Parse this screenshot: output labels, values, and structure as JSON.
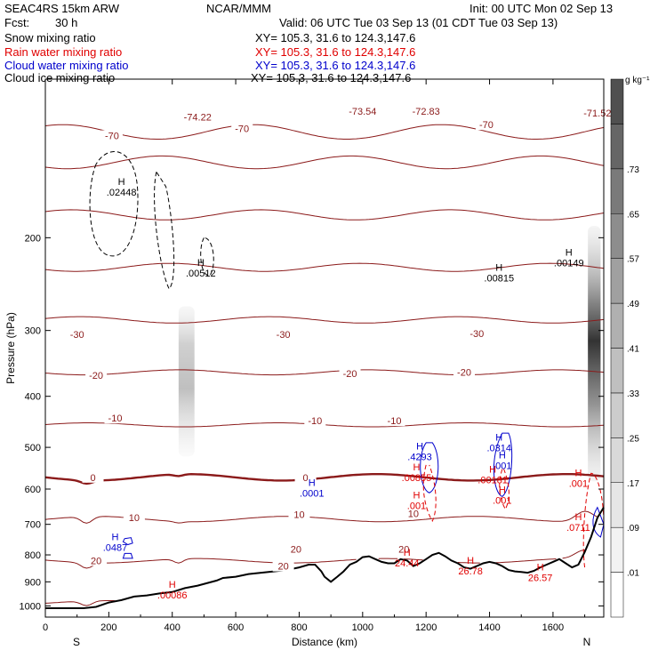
{
  "header": {
    "model": "SEAC4RS 15km ARW",
    "org": "NCAR/MMM",
    "init": "Init: 00 UTC Mon 02 Sep 13",
    "fcst_label": "Fcst:",
    "fcst_value": "30 h",
    "valid": "Valid: 06 UTC Tue 03 Sep 13 (01 CDT Tue 03 Sep 13)"
  },
  "fields": [
    {
      "name": "Snow mixing ratio",
      "xy": "XY= 105.3, 31.6 to 124.3,147.6",
      "color": "#000000"
    },
    {
      "name": "Rain water mixing ratio",
      "xy": "XY= 105.3, 31.6 to 124.3,147.6",
      "color": "#e00000"
    },
    {
      "name": "Cloud water mixing ratio",
      "xy": "XY= 105.3, 31.6 to 124.3,147.6",
      "color": "#0000cc"
    },
    {
      "name": "Cloud ice mixing ratio",
      "xy": "XY= 105.3, 31.6 to 124.3,147.6",
      "color": "#000000"
    }
  ],
  "chart_data": {
    "type": "cross-section",
    "xlabel": "Distance (km)",
    "ylabel": "Pressure (hPa)",
    "xlim": [
      0,
      1760
    ],
    "ylim": [
      1050,
      100
    ],
    "y_scale": "log",
    "x_ticks": [
      0,
      200,
      400,
      600,
      800,
      1000,
      1200,
      1400,
      1600
    ],
    "y_ticks": [
      200,
      300,
      400,
      500,
      600,
      700,
      800,
      900,
      1000
    ],
    "end_labels": {
      "left": "S",
      "right": "N"
    },
    "colorbar": {
      "units": "g kg⁻¹",
      "ticks": [
        ".01",
        ".09",
        ".17",
        ".25",
        ".33",
        ".41",
        ".49",
        ".57",
        ".65",
        ".73"
      ],
      "shades": [
        "#ffffff",
        "#f2f2f2",
        "#e6e6e6",
        "#d9d9d9",
        "#cccccc",
        "#bfbfbf",
        "#b0b0b0",
        "#a0a0a0",
        "#8d8d8d",
        "#7a7a7a",
        "#666666",
        "#505050"
      ]
    },
    "terrain": [
      [
        0,
        1010
      ],
      [
        120,
        1010
      ],
      [
        160,
        1004
      ],
      [
        200,
        985
      ],
      [
        240,
        975
      ],
      [
        280,
        960
      ],
      [
        320,
        955
      ],
      [
        360,
        947
      ],
      [
        400,
        941
      ],
      [
        440,
        925
      ],
      [
        480,
        915
      ],
      [
        540,
        895
      ],
      [
        560,
        885
      ],
      [
        600,
        880
      ],
      [
        640,
        870
      ],
      [
        680,
        865
      ],
      [
        720,
        860
      ],
      [
        760,
        855
      ],
      [
        800,
        845
      ],
      [
        830,
        835
      ],
      [
        850,
        835
      ],
      [
        870,
        860
      ],
      [
        880,
        880
      ],
      [
        900,
        900
      ],
      [
        920,
        880
      ],
      [
        940,
        860
      ],
      [
        960,
        835
      ],
      [
        980,
        825
      ],
      [
        1000,
        808
      ],
      [
        1020,
        805
      ],
      [
        1040,
        815
      ],
      [
        1060,
        825
      ],
      [
        1080,
        830
      ],
      [
        1100,
        830
      ],
      [
        1120,
        815
      ],
      [
        1140,
        820
      ],
      [
        1160,
        840
      ],
      [
        1180,
        830
      ],
      [
        1200,
        815
      ],
      [
        1220,
        800
      ],
      [
        1240,
        793
      ],
      [
        1260,
        805
      ],
      [
        1280,
        820
      ],
      [
        1300,
        830
      ],
      [
        1320,
        845
      ],
      [
        1340,
        850
      ],
      [
        1360,
        840
      ],
      [
        1380,
        830
      ],
      [
        1400,
        825
      ],
      [
        1420,
        830
      ],
      [
        1440,
        840
      ],
      [
        1460,
        855
      ],
      [
        1480,
        860
      ],
      [
        1500,
        862
      ],
      [
        1520,
        865
      ],
      [
        1540,
        858
      ],
      [
        1560,
        845
      ],
      [
        1580,
        835
      ],
      [
        1600,
        825
      ],
      [
        1620,
        815
      ],
      [
        1640,
        830
      ],
      [
        1660,
        845
      ],
      [
        1680,
        835
      ],
      [
        1700,
        790
      ],
      [
        1720,
        740
      ],
      [
        1740,
        680
      ],
      [
        1760,
        650
      ]
    ],
    "temperature_levels": [
      -70,
      -60,
      -50,
      -40,
      -30,
      -20,
      -10,
      0,
      10,
      20,
      30
    ],
    "temperature_labels": [
      {
        "text": "-74.22",
        "x": 480,
        "p": 118
      },
      {
        "text": "-73.54",
        "x": 1000,
        "p": 115
      },
      {
        "text": "-72.83",
        "x": 1200,
        "p": 115
      },
      {
        "text": "-71.52",
        "x": 1740,
        "p": 116
      },
      {
        "text": "-70",
        "x": 210,
        "p": 128
      },
      {
        "text": "-70",
        "x": 620,
        "p": 124
      },
      {
        "text": "-70",
        "x": 1390,
        "p": 122
      },
      {
        "text": "-30",
        "x": 100,
        "p": 305
      },
      {
        "text": "-30",
        "x": 750,
        "p": 305
      },
      {
        "text": "-30",
        "x": 1360,
        "p": 304
      },
      {
        "text": "-20",
        "x": 160,
        "p": 365
      },
      {
        "text": "-20",
        "x": 960,
        "p": 362
      },
      {
        "text": "-20",
        "x": 1320,
        "p": 360
      },
      {
        "text": "-10",
        "x": 220,
        "p": 440
      },
      {
        "text": "-10",
        "x": 850,
        "p": 445
      },
      {
        "text": "-10",
        "x": 1100,
        "p": 445
      },
      {
        "text": "0",
        "x": 150,
        "p": 570
      },
      {
        "text": "0",
        "x": 820,
        "p": 570
      },
      {
        "text": "10",
        "x": 280,
        "p": 680
      },
      {
        "text": "10",
        "x": 800,
        "p": 670
      },
      {
        "text": "10",
        "x": 1160,
        "p": 668
      },
      {
        "text": "20",
        "x": 160,
        "p": 820
      },
      {
        "text": "20",
        "x": 790,
        "p": 780
      },
      {
        "text": "20",
        "x": 1130,
        "p": 780
      },
      {
        "text": "20",
        "x": 750,
        "p": 840
      }
    ],
    "maxima_labels": [
      {
        "text": ".02448",
        "x": 240,
        "p": 165,
        "color": "#000000"
      },
      {
        "text": ".00512",
        "x": 490,
        "p": 235,
        "color": "#000000"
      },
      {
        "text": ".00815",
        "x": 1430,
        "p": 240,
        "color": "#000000"
      },
      {
        "text": ".00149",
        "x": 1650,
        "p": 225,
        "color": "#000000"
      },
      {
        "text": ".4293",
        "x": 1180,
        "p": 525,
        "color": "#0000cc"
      },
      {
        "text": ".0314",
        "x": 1430,
        "p": 505,
        "color": "#0000cc"
      },
      {
        "text": ".001",
        "x": 1440,
        "p": 545,
        "color": "#0000cc"
      },
      {
        "text": ".0001",
        "x": 840,
        "p": 615,
        "color": "#0000cc"
      },
      {
        "text": ".0487",
        "x": 220,
        "p": 780,
        "color": "#0000cc"
      },
      {
        "text": ".00855",
        "x": 1170,
        "p": 575,
        "color": "#e00000"
      },
      {
        "text": ".00181",
        "x": 1410,
        "p": 580,
        "color": "#e00000"
      },
      {
        "text": ".001",
        "x": 1440,
        "p": 635,
        "color": "#e00000"
      },
      {
        "text": ".001",
        "x": 1170,
        "p": 650,
        "color": "#e00000"
      },
      {
        "text": ".001",
        "x": 1680,
        "p": 590,
        "color": "#e00000"
      },
      {
        "text": ".0711",
        "x": 1680,
        "p": 715,
        "color": "#e00000"
      },
      {
        "text": ".00086",
        "x": 400,
        "p": 960,
        "color": "#e00000"
      },
      {
        "text": "24.44",
        "x": 1140,
        "p": 835,
        "color": "#e00000"
      },
      {
        "text": "26.78",
        "x": 1340,
        "p": 865,
        "color": "#e00000"
      },
      {
        "text": "26.57",
        "x": 1560,
        "p": 890,
        "color": "#e00000"
      }
    ]
  }
}
